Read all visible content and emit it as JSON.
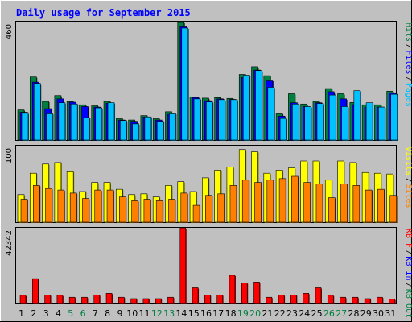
{
  "chart_data": {
    "type": "bar",
    "title": "Daily usage for September 2015",
    "categories": [
      "1",
      "2",
      "3",
      "4",
      "5",
      "6",
      "7",
      "8",
      "9",
      "10",
      "11",
      "12",
      "13",
      "14",
      "15",
      "16",
      "17",
      "18",
      "19",
      "20",
      "21",
      "22",
      "23",
      "24",
      "25",
      "26",
      "27",
      "28",
      "29",
      "30",
      "31"
    ],
    "weekend_days": [
      "5",
      "6",
      "12",
      "13",
      "19",
      "20",
      "26",
      "27"
    ],
    "panels": [
      {
        "name": "hits-files-pages",
        "max_label": "460",
        "ylim": [
          0,
          460
        ],
        "series": [
          {
            "name": "Hits",
            "color": "#008040",
            "values": [
              117,
              245,
              150,
              173,
              150,
              137,
              133,
              150,
              83,
              78,
              95,
              83,
              110,
              460,
              168,
              163,
              165,
              162,
              255,
              285,
              250,
              105,
              180,
              140,
              150,
              200,
              180,
              146,
              137,
              137,
              190
            ]
          },
          {
            "name": "Files",
            "color": "#0000ff",
            "values": [
              108,
              225,
              122,
              160,
              147,
              130,
              128,
              143,
              78,
              73,
              90,
              78,
              103,
              443,
              165,
              153,
              160,
              158,
              243,
              272,
              233,
              93,
              145,
              130,
              145,
              188,
              160,
              138,
              128,
              128,
              182
            ]
          },
          {
            "name": "Pages",
            "color": "#00c0ff",
            "values": [
              107,
              220,
              105,
              145,
              140,
              87,
              125,
              145,
              76,
              63,
              90,
              73,
              105,
              435,
              160,
              148,
              157,
              157,
              252,
              270,
              205,
              84,
              140,
              130,
              142,
              175,
              130,
              192,
              145,
              128,
              178
            ]
          }
        ],
        "legend": [
          {
            "text": "Hits",
            "color": "#008040"
          },
          {
            "text": "Files",
            "color": "#0000ff"
          },
          {
            "text": "Pages",
            "color": "#00c0ff"
          }
        ]
      },
      {
        "name": "visits-sites",
        "max_label": "100",
        "ylim": [
          0,
          100
        ],
        "series": [
          {
            "name": "Visits",
            "color": "#ffff00",
            "values": [
              36,
              64,
              76,
              78,
              66,
              40,
              52,
              52,
              43,
              36,
              37,
              33,
              48,
              53,
              40,
              58,
              68,
              72,
              95,
              92,
              64,
              68,
              71,
              80,
              80,
              55,
              80,
              78,
              65,
              64,
              63
            ]
          },
          {
            "name": "Sites",
            "color": "#ff8000",
            "values": [
              30,
              48,
              44,
              42,
              38,
              31,
              42,
              42,
              33,
              28,
              30,
              28,
              30,
              38,
              22,
              35,
              37,
              48,
              55,
              52,
              55,
              57,
              60,
              52,
              50,
              32,
              50,
              48,
              42,
              43,
              35
            ]
          }
        ],
        "legend": [
          {
            "text": "Visits",
            "color": "#ffff00"
          },
          {
            "text": "Sites",
            "color": "#ff8000"
          }
        ]
      },
      {
        "name": "kbytes",
        "max_label": "42342",
        "ylim": [
          0,
          42342
        ],
        "series": [
          {
            "name": "KBytes",
            "color": "#ff0000",
            "values": [
              4600,
              13900,
              4800,
              4600,
              3500,
              3500,
              4800,
              5700,
              3500,
              2700,
              2700,
              2700,
              3500,
              42342,
              8800,
              4800,
              4800,
              15800,
              11500,
              12000,
              3500,
              4800,
              4800,
              5700,
              8800,
              4600,
              3500,
              3500,
              2700,
              3500,
              2400
            ]
          }
        ],
        "legend": [
          {
            "text": "KB F",
            "color": "#ff0000"
          },
          {
            "text": "KB In",
            "color": "#0000ff"
          },
          {
            "text": "KB Out",
            "color": "#008040"
          }
        ]
      }
    ]
  }
}
